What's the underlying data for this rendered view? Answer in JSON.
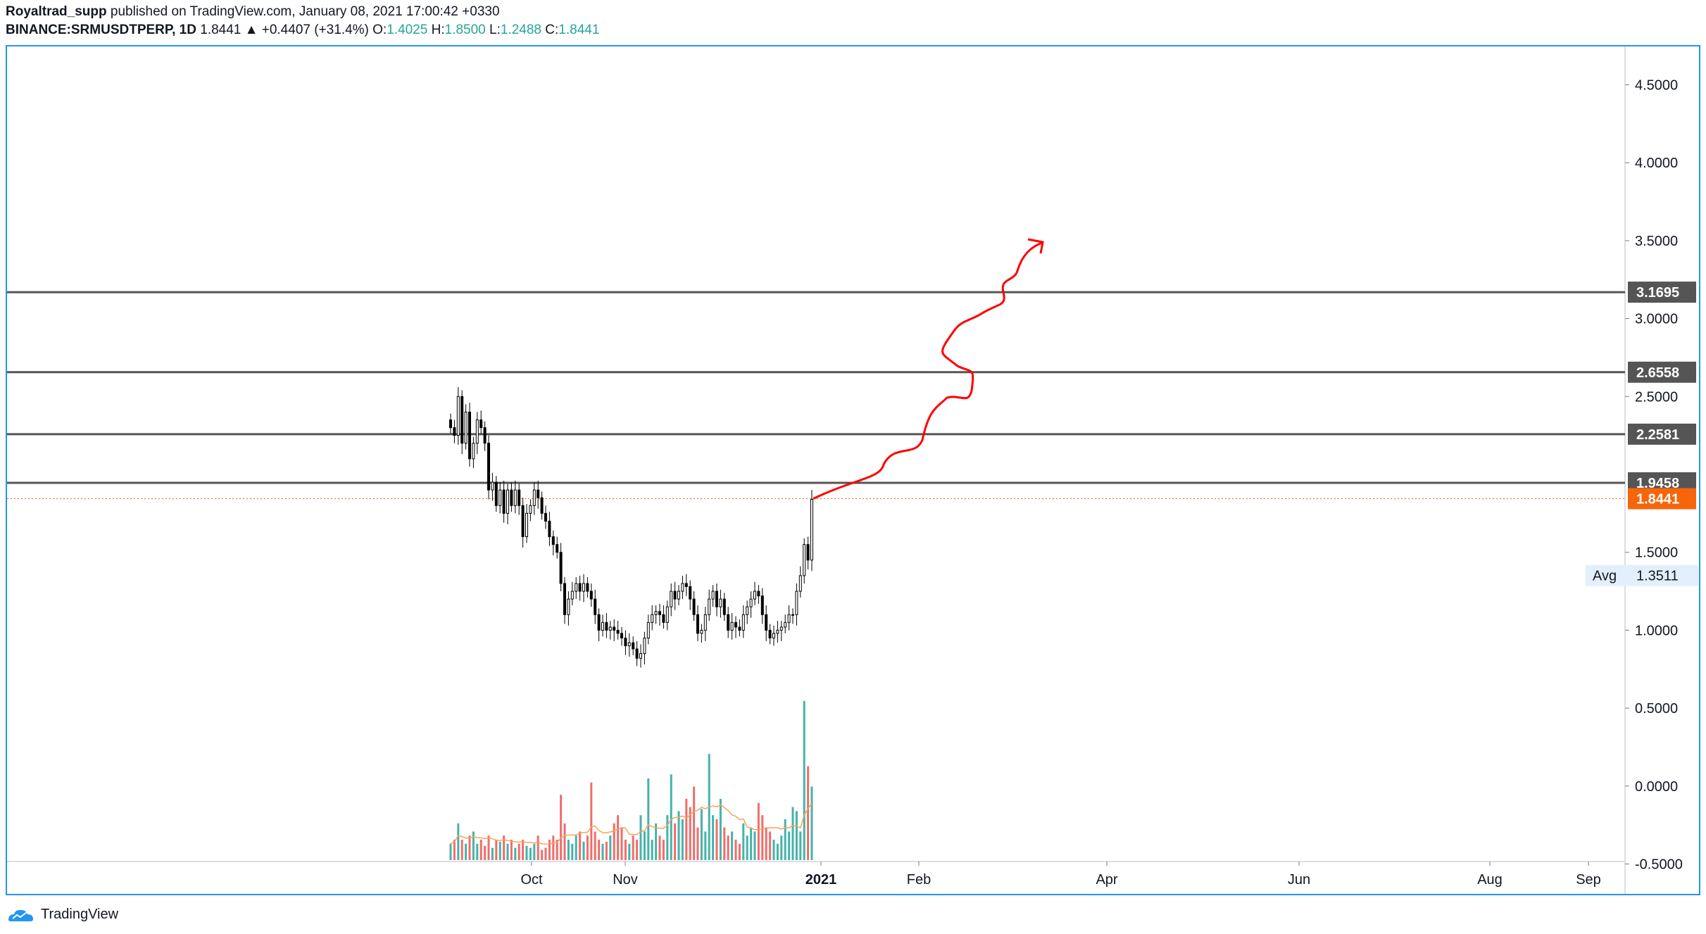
{
  "header": {
    "author": "Royaltrad_supp",
    "published_text": "published on TradingView.com, January 08, 2021 17:00:42 +0330",
    "symbol": "BINANCE:SRMUSDTPERP, 1D",
    "last": "1.8441",
    "change": "▲ +0.4407 (+31.4%)",
    "o_label": "O:",
    "o_value": "1.4025",
    "h_label": "H:",
    "h_value": "1.8500",
    "l_label": "L:",
    "l_value": "1.2488",
    "c_label": "C:",
    "c_value": "1.8441"
  },
  "footer": {
    "brand": "TradingView"
  },
  "colors": {
    "up": "#26a69a",
    "down": "#ef5350",
    "candle": "#000000",
    "level_line": "#555555",
    "current_tag": "#f7650b",
    "arrow": "#ff0000",
    "border": "#2196f3",
    "ma": "#f7a35c"
  },
  "chart_data": {
    "type": "candlestick",
    "x_axis_labels": [
      "Oct",
      "Nov",
      "2021",
      "Feb",
      "Apr",
      "Jun",
      "Aug",
      "Sep"
    ],
    "y_axis_ticks": [
      "4.5000",
      "4.0000",
      "3.5000",
      "3.0000",
      "2.5000",
      "1.5000",
      "1.0000",
      "0.5000",
      "0.0000",
      "-0.5000"
    ],
    "y_range": [
      -0.5,
      4.6
    ],
    "levels": [
      {
        "label": "3.1695",
        "value": 3.1695
      },
      {
        "label": "2.6558",
        "value": 2.6558
      },
      {
        "label": "2.2581",
        "value": 2.2581
      },
      {
        "label": "1.9458",
        "value": 1.9458
      }
    ],
    "current_price": {
      "label": "1.8441",
      "value": 1.8441
    },
    "avg": {
      "label": "Avg",
      "value_label": "1.3511",
      "value": 1.3511
    },
    "closes": [
      2.3,
      2.25,
      2.5,
      2.2,
      2.4,
      2.1,
      2.2,
      2.35,
      2.3,
      2.2,
      1.9,
      1.95,
      1.8,
      1.9,
      1.75,
      1.9,
      1.8,
      1.9,
      1.8,
      1.6,
      1.75,
      1.8,
      1.9,
      1.85,
      1.75,
      1.7,
      1.6,
      1.55,
      1.5,
      1.3,
      1.1,
      1.2,
      1.25,
      1.3,
      1.25,
      1.3,
      1.25,
      1.2,
      1.1,
      1.0,
      1.05,
      1.0,
      1.02,
      1.0,
      0.98,
      0.95,
      0.9,
      0.92,
      0.88,
      0.82,
      0.85,
      0.95,
      1.05,
      1.1,
      1.12,
      1.1,
      1.05,
      1.15,
      1.25,
      1.2,
      1.25,
      1.3,
      1.28,
      1.2,
      1.1,
      0.98,
      1.0,
      1.1,
      1.2,
      1.25,
      1.15,
      1.2,
      1.1,
      1.0,
      1.05,
      1.02,
      1.0,
      1.1,
      1.15,
      1.2,
      1.25,
      1.22,
      1.1,
      1.0,
      0.95,
      0.98,
      1.0,
      1.02,
      1.05,
      1.1,
      1.1,
      1.25,
      1.35,
      1.55,
      1.45,
      1.84
    ],
    "volume_scaled": [
      0.08,
      0.1,
      0.18,
      0.1,
      0.08,
      0.12,
      0.14,
      0.08,
      0.1,
      0.07,
      0.12,
      0.06,
      0.1,
      0.09,
      0.12,
      0.08,
      0.1,
      0.06,
      0.08,
      0.1,
      0.07,
      0.06,
      0.08,
      0.12,
      0.05,
      0.06,
      0.1,
      0.12,
      0.1,
      0.32,
      0.18,
      0.1,
      0.08,
      0.12,
      0.14,
      0.09,
      0.12,
      0.38,
      0.14,
      0.1,
      0.08,
      0.09,
      0.12,
      0.18,
      0.22,
      0.16,
      0.1,
      0.08,
      0.12,
      0.1,
      0.22,
      0.14,
      0.4,
      0.1,
      0.18,
      0.12,
      0.1,
      0.22,
      0.42,
      0.18,
      0.24,
      0.2,
      0.3,
      0.26,
      0.36,
      0.16,
      0.25,
      0.14,
      0.52,
      0.22,
      0.2,
      0.3,
      0.16,
      0.12,
      0.14,
      0.1,
      0.08,
      0.18,
      0.12,
      0.16,
      0.14,
      0.28,
      0.22,
      0.16,
      0.14,
      0.1,
      0.08,
      0.12,
      0.2,
      0.14,
      0.26,
      0.24,
      0.14,
      0.78,
      0.46,
      0.36
    ]
  }
}
